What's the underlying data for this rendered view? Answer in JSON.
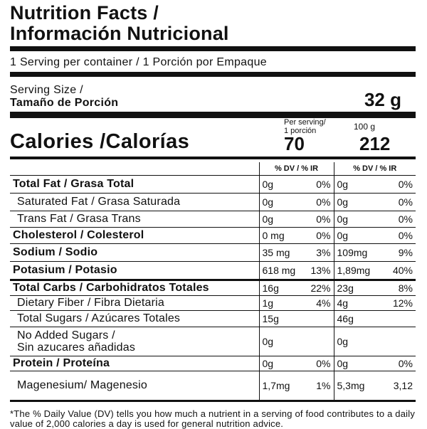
{
  "title_line1": "Nutrition Facts /",
  "title_line2": "Información Nutricional",
  "servings_per_container": "1 Serving per container / 1 Porción por Empaque",
  "serving_size_label_1": "Serving Size /",
  "serving_size_label_2": "Tamaño de Porción",
  "serving_size_value": "32 g",
  "calories_label": "Calories /Calorías",
  "per_serving_header_1": "Per serving/",
  "per_serving_header_2": "1 porción",
  "per_100g_header": "100 g",
  "calories_per_serving": "70",
  "calories_per_100g": "212",
  "dv_header": "% DV / % IR",
  "dv_header_2": "% DV / % IR",
  "nutrients": [
    {
      "name": "Total Fat / Grasa Total",
      "a": "0g",
      "a_dv": "0%",
      "b": "0g",
      "b_dv": "0%"
    },
    {
      "name": "Saturated Fat / Grasa Saturada",
      "a": "0g",
      "a_dv": "0%",
      "b": "0g",
      "b_dv": "0%"
    },
    {
      "name": "Trans Fat / Grasa Trans",
      "a": "0g",
      "a_dv": "0%",
      "b": "0g",
      "b_dv": "0%"
    },
    {
      "name": "Cholesterol / Colesterol",
      "a": "0 mg",
      "a_dv": "0%",
      "b": "0g",
      "b_dv": "0%"
    },
    {
      "name": "Sodium / Sodio",
      "a": "35 mg",
      "a_dv": "3%",
      "b": "109mg",
      "b_dv": "9%"
    },
    {
      "name": "Potasium / Potasio",
      "a": "618 mg",
      "a_dv": "13%",
      "b": "1,89mg",
      "b_dv": "40%"
    },
    {
      "name": "Total Carbs / Carbohidratos Totales",
      "a": "16g",
      "a_dv": "22%",
      "b": "23g",
      "b_dv": "8%"
    },
    {
      "name": "Dietary Fiber / Fibra Dietaria",
      "a": "1g",
      "a_dv": "4%",
      "b": "4g",
      "b_dv": "12%"
    },
    {
      "name": "Total Sugars / Azúcares Totales",
      "a": "15g",
      "a_dv": "",
      "b": "46g",
      "b_dv": ""
    },
    {
      "name_1": "No Added Sugars /",
      "name_2": "Sin azucares añadidas",
      "a": "0g",
      "a_dv": "",
      "b": "0g",
      "b_dv": ""
    },
    {
      "name": "Protein / Proteína",
      "a": "0g",
      "a_dv": "0%",
      "b": "0g",
      "b_dv": "0%"
    },
    {
      "name": "Magenesium/ Magenesio",
      "a": "1,7mg",
      "a_dv": "1%",
      "b": "5,3mg",
      "b_dv": "3,12"
    }
  ],
  "footnote": "*The % Daily Value (DV) tells you how much a nutrient in a serving of food contributes to a daily value of 2,000 calories a day is used for general nutrition advice."
}
